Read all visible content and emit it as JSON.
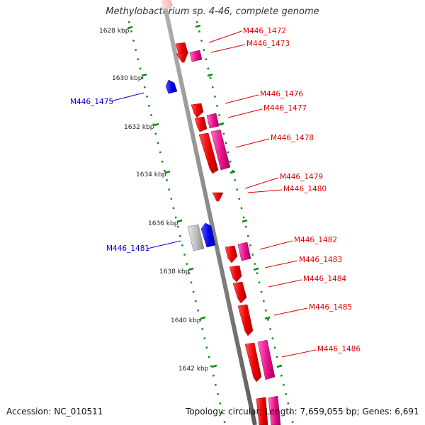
{
  "title": "Methylobacterium sp. 4-46, complete genome",
  "footer": {
    "accession": "Accession: NC_010511",
    "summary": "Topology: circular; Length: 7,659,055 bp; Genes: 6,691"
  },
  "scale_labels": [
    "1628 kbp",
    "1630 kbp",
    "1632 kbp",
    "1634 kbp",
    "1636 kbp",
    "1638 kbp",
    "1640 kbp",
    "1642 kbp"
  ],
  "colors": {
    "backbone": "#8a8a8a",
    "forward_gene": "#ee0000",
    "rna_gene": "#e8118a",
    "reverse_gene": "#0000ee",
    "pseudo_gene": "#bbbbbb",
    "scale_tick": "#118811",
    "label_forward": "#dd0000",
    "label_reverse": "#0000cc"
  },
  "gene_labels_right": [
    "M446_1472",
    "M446_1473",
    "M446_1476",
    "M446_1477",
    "M446_1478",
    "M446_1479",
    "M446_1480",
    "M446_1482",
    "M446_1483",
    "M446_1484",
    "M446_1485",
    "M446_1486"
  ],
  "gene_labels_left": [
    "M446_1475",
    "M446_1481"
  ]
}
